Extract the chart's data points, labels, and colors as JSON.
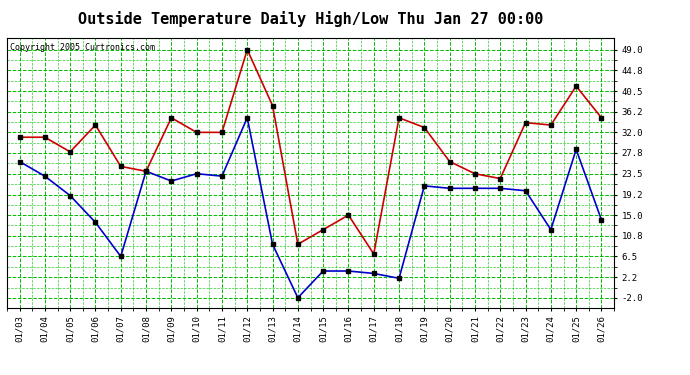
{
  "title": "Outside Temperature Daily High/Low Thu Jan 27 00:00",
  "copyright": "Copyright 2005 Curtronics.com",
  "dates": [
    "01/03",
    "01/04",
    "01/05",
    "01/06",
    "01/07",
    "01/08",
    "01/09",
    "01/10",
    "01/11",
    "01/12",
    "01/13",
    "01/14",
    "01/15",
    "01/16",
    "01/17",
    "01/18",
    "01/19",
    "01/20",
    "01/21",
    "01/22",
    "01/23",
    "01/24",
    "01/25",
    "01/26"
  ],
  "high_temps": [
    31.0,
    31.0,
    28.0,
    33.5,
    25.0,
    24.0,
    35.0,
    32.0,
    32.0,
    49.0,
    37.5,
    9.0,
    12.0,
    15.0,
    7.0,
    35.0,
    33.0,
    26.0,
    23.5,
    22.5,
    34.0,
    33.5,
    41.5,
    35.0
  ],
  "low_temps": [
    26.0,
    23.0,
    19.0,
    13.5,
    6.5,
    24.0,
    22.0,
    23.5,
    23.0,
    35.0,
    9.0,
    -2.0,
    3.5,
    3.5,
    3.0,
    2.0,
    21.0,
    20.5,
    20.5,
    20.5,
    20.0,
    12.0,
    28.5,
    14.0
  ],
  "high_color": "#cc0000",
  "low_color": "#0000cc",
  "bg_color": "#ffffff",
  "grid_color": "#00bb00",
  "y_ticks": [
    -2.0,
    2.2,
    6.5,
    10.8,
    15.0,
    19.2,
    23.5,
    27.8,
    32.0,
    36.2,
    40.5,
    44.8,
    49.0
  ],
  "ylim": [
    -4.0,
    51.5
  ],
  "title_fontsize": 11,
  "markersize": 3,
  "linewidth": 1.2
}
